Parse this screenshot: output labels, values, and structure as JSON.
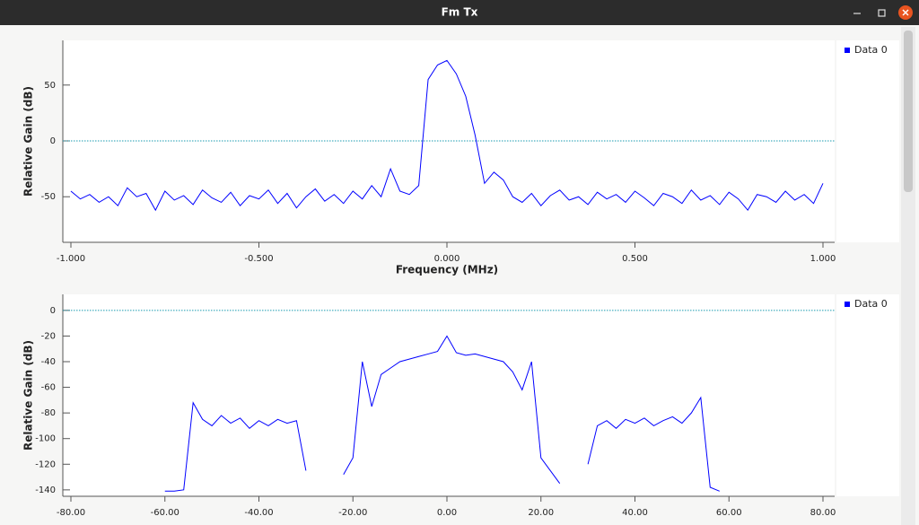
{
  "window": {
    "title": "Fm Tx"
  },
  "chart_data": [
    {
      "type": "line",
      "ylabel": "Relative Gain (dB)",
      "xlabel": "Frequency (MHz)",
      "xlim": [
        -1,
        1
      ],
      "ylim": [
        -90,
        90
      ],
      "xticks": [
        {
          "value": -1,
          "label": "-1.000"
        },
        {
          "value": -0.5,
          "label": "-0.500"
        },
        {
          "value": 0,
          "label": "0.000"
        },
        {
          "value": 0.5,
          "label": "0.500"
        },
        {
          "value": 1,
          "label": "1.000"
        }
      ],
      "yticks": [
        50,
        0,
        -50
      ],
      "reference_line": 0,
      "legend": "top-right",
      "x": [
        -1.0,
        -0.975,
        -0.95,
        -0.925,
        -0.9,
        -0.875,
        -0.85,
        -0.825,
        -0.8,
        -0.775,
        -0.75,
        -0.725,
        -0.7,
        -0.675,
        -0.65,
        -0.625,
        -0.6,
        -0.575,
        -0.55,
        -0.525,
        -0.5,
        -0.475,
        -0.45,
        -0.425,
        -0.4,
        -0.375,
        -0.35,
        -0.325,
        -0.3,
        -0.275,
        -0.25,
        -0.225,
        -0.2,
        -0.175,
        -0.15,
        -0.125,
        -0.1,
        -0.075,
        -0.05,
        -0.025,
        0.0,
        0.025,
        0.05,
        0.075,
        0.1,
        0.125,
        0.15,
        0.175,
        0.2,
        0.225,
        0.25,
        0.275,
        0.3,
        0.325,
        0.35,
        0.375,
        0.4,
        0.425,
        0.45,
        0.475,
        0.5,
        0.525,
        0.55,
        0.575,
        0.6,
        0.625,
        0.65,
        0.675,
        0.7,
        0.725,
        0.75,
        0.775,
        0.8,
        0.825,
        0.85,
        0.875,
        0.9,
        0.925,
        0.95,
        0.975,
        1.0
      ],
      "series": [
        {
          "name": "Data 0",
          "color": "#0000ff",
          "values": [
            -45,
            -52,
            -48,
            -55,
            -50,
            -58,
            -42,
            -50,
            -47,
            -62,
            -45,
            -53,
            -49,
            -57,
            -44,
            -51,
            -55,
            -46,
            -58,
            -49,
            -52,
            -44,
            -56,
            -47,
            -60,
            -50,
            -43,
            -54,
            -48,
            -56,
            -45,
            -52,
            -40,
            -50,
            -25,
            -45,
            -48,
            -40,
            55,
            68,
            72,
            60,
            40,
            5,
            -38,
            -28,
            -35,
            -50,
            -55,
            -47,
            -58,
            -49,
            -44,
            -53,
            -50,
            -57,
            -46,
            -52,
            -48,
            -55,
            -45,
            -51,
            -58,
            -47,
            -50,
            -56,
            -44,
            -53,
            -49,
            -57,
            -46,
            -52,
            -62,
            -48,
            -50,
            -55,
            -45,
            -53,
            -48,
            -56,
            -38
          ]
        }
      ]
    },
    {
      "type": "line",
      "ylabel": "Relative Gain (dB)",
      "xlim": [
        -80,
        80
      ],
      "ylim": [
        -145,
        12.5
      ],
      "xticks": [
        {
          "value": -80,
          "label": "-80.00"
        },
        {
          "value": -60,
          "label": "-60.00"
        },
        {
          "value": -40,
          "label": "-40.00"
        },
        {
          "value": -20,
          "label": "-20.00"
        },
        {
          "value": 0,
          "label": "0.00"
        },
        {
          "value": 20,
          "label": "20.00"
        },
        {
          "value": 40,
          "label": "40.00"
        },
        {
          "value": 60,
          "label": "60.00"
        },
        {
          "value": 80,
          "label": "80.00"
        }
      ],
      "yticks": [
        0,
        -20,
        -40,
        -60,
        -80,
        -100,
        -120,
        -140
      ],
      "reference_line": 0,
      "legend": "top-right",
      "x": [
        -80,
        -78,
        -76,
        -74,
        -72,
        -70,
        -68,
        -66,
        -64,
        -62,
        -60,
        -58,
        -56,
        -54,
        -52,
        -50,
        -48,
        -46,
        -44,
        -42,
        -40,
        -38,
        -36,
        -34,
        -32,
        -30,
        -28,
        -26,
        -24,
        -22,
        -20,
        -18,
        -16,
        -14,
        -12,
        -10,
        -8,
        -6,
        -4,
        -2,
        0,
        2,
        4,
        6,
        8,
        10,
        12,
        14,
        16,
        18,
        20,
        22,
        24,
        26,
        28,
        30,
        32,
        34,
        36,
        38,
        40,
        42,
        44,
        46,
        48,
        50,
        52,
        54,
        56,
        58,
        60,
        62,
        64,
        66,
        68,
        70,
        72,
        74,
        76,
        78,
        80
      ],
      "series": [
        {
          "name": "Data 0",
          "color": "#0000ff",
          "values": [
            null,
            null,
            null,
            null,
            null,
            null,
            null,
            null,
            null,
            null,
            -141,
            -141,
            -140,
            -72,
            -85,
            -90,
            -82,
            -88,
            -84,
            -92,
            -86,
            -90,
            -85,
            -88,
            -86,
            -125,
            null,
            null,
            null,
            -128,
            -115,
            -40,
            -75,
            -50,
            -45,
            -40,
            -38,
            -36,
            -34,
            -32,
            -20,
            -33,
            -35,
            -34,
            -36,
            -38,
            -40,
            -48,
            -62,
            -40,
            -115,
            -125,
            -135,
            null,
            null,
            -120,
            -90,
            -86,
            -92,
            -85,
            -88,
            -84,
            -90,
            -86,
            -83,
            -88,
            -80,
            -68,
            -138,
            -141,
            null,
            null,
            null,
            null,
            null,
            null,
            null,
            null,
            null,
            null,
            null
          ]
        }
      ]
    }
  ]
}
